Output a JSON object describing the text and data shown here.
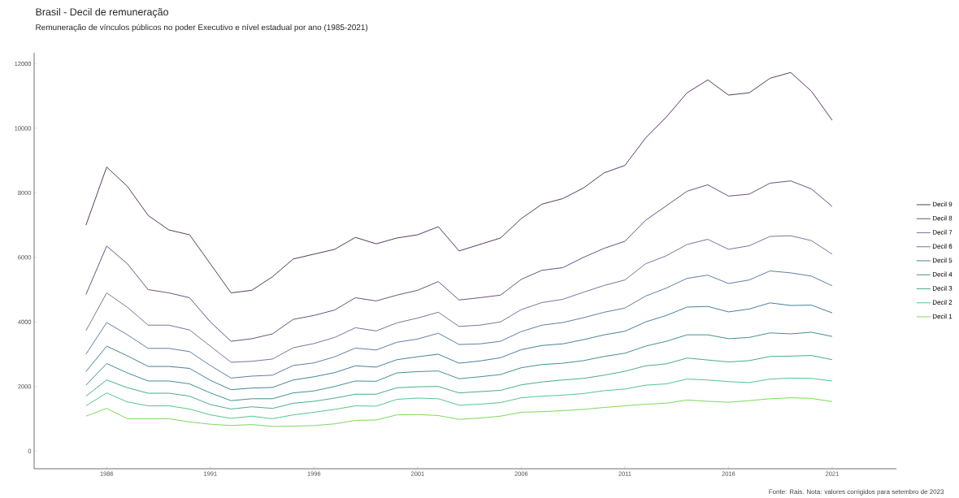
{
  "chart_data": {
    "type": "line",
    "title": "Brasil - Decil de remuneração",
    "subtitle": "Remuneração de vínculos públicos no poder Executivo e nível estadual por ano (1985-2021)",
    "annotations": [
      "Fonte: Rais. Nota: valores corrigidos para setembro de 2023"
    ],
    "x": [
      1985,
      1986,
      1987,
      1988,
      1989,
      1990,
      1991,
      1992,
      1993,
      1994,
      1995,
      1996,
      1997,
      1998,
      1999,
      2000,
      2001,
      2002,
      2003,
      2004,
      2005,
      2006,
      2007,
      2008,
      2009,
      2010,
      2011,
      2012,
      2013,
      2014,
      2015,
      2016,
      2017,
      2018,
      2019,
      2020,
      2021
    ],
    "xlim": [
      1982.5,
      2024.1
    ],
    "xticks": [
      1986,
      1991,
      1996,
      2001,
      2006,
      2011,
      2016,
      2021
    ],
    "ylim": [
      -550,
      12340
    ],
    "yticks": [
      0,
      2000,
      4000,
      6000,
      8000,
      10000,
      12000
    ],
    "legend": "right",
    "series": [
      {
        "name": "Decil 9",
        "color": "#44264c",
        "values": [
          7000,
          8800,
          8200,
          7300,
          6850,
          6700,
          5800,
          4900,
          4980,
          5400,
          5950,
          6100,
          6250,
          6620,
          6420,
          6600,
          6700,
          6950,
          6200,
          6400,
          6600,
          7200,
          7650,
          7820,
          8150,
          8620,
          8850,
          9700,
          10350,
          11100,
          11500,
          11030,
          11100,
          11550,
          11730,
          11150,
          10250
        ]
      },
      {
        "name": "Decil 8",
        "color": "#5a3f6b",
        "values": [
          4850,
          6350,
          5800,
          5000,
          4900,
          4750,
          4000,
          3400,
          3480,
          3630,
          4080,
          4200,
          4370,
          4750,
          4650,
          4830,
          4980,
          5250,
          4680,
          4750,
          4830,
          5320,
          5600,
          5680,
          6000,
          6280,
          6500,
          7150,
          7600,
          8050,
          8250,
          7900,
          7960,
          8300,
          8370,
          8120,
          7580
        ]
      },
      {
        "name": "Decil 7",
        "color": "#6b6391",
        "values": [
          3730,
          4900,
          4450,
          3900,
          3900,
          3750,
          3250,
          2750,
          2780,
          2850,
          3200,
          3330,
          3520,
          3820,
          3720,
          3970,
          4120,
          4300,
          3860,
          3900,
          4000,
          4380,
          4600,
          4700,
          4920,
          5130,
          5300,
          5800,
          6050,
          6400,
          6560,
          6250,
          6360,
          6650,
          6670,
          6520,
          6100
        ]
      },
      {
        "name": "Decil 6",
        "color": "#4f6f94",
        "values": [
          3000,
          3980,
          3600,
          3180,
          3180,
          3080,
          2650,
          2260,
          2320,
          2350,
          2650,
          2730,
          2920,
          3190,
          3130,
          3370,
          3470,
          3650,
          3300,
          3320,
          3400,
          3700,
          3900,
          3980,
          4130,
          4300,
          4430,
          4800,
          5050,
          5350,
          5450,
          5190,
          5300,
          5580,
          5520,
          5420,
          5120
        ]
      },
      {
        "name": "Decil 5",
        "color": "#33718f",
        "values": [
          2460,
          3250,
          2950,
          2620,
          2620,
          2560,
          2190,
          1900,
          1950,
          1970,
          2200,
          2300,
          2430,
          2640,
          2600,
          2830,
          2920,
          3000,
          2720,
          2790,
          2890,
          3140,
          3270,
          3320,
          3450,
          3600,
          3710,
          4000,
          4200,
          4460,
          4480,
          4310,
          4400,
          4590,
          4510,
          4520,
          4280
        ]
      },
      {
        "name": "Decil 4",
        "color": "#2a8480",
        "values": [
          2040,
          2710,
          2420,
          2170,
          2170,
          2080,
          1800,
          1560,
          1620,
          1620,
          1800,
          1860,
          2000,
          2170,
          2160,
          2420,
          2460,
          2480,
          2240,
          2300,
          2370,
          2580,
          2680,
          2720,
          2800,
          2930,
          3030,
          3250,
          3400,
          3600,
          3600,
          3480,
          3520,
          3660,
          3630,
          3680,
          3550
        ]
      },
      {
        "name": "Decil 3",
        "color": "#35a283",
        "values": [
          1700,
          2200,
          1960,
          1790,
          1790,
          1700,
          1440,
          1300,
          1370,
          1320,
          1480,
          1540,
          1640,
          1760,
          1760,
          1960,
          1990,
          2000,
          1800,
          1840,
          1880,
          2050,
          2140,
          2200,
          2250,
          2350,
          2470,
          2640,
          2700,
          2880,
          2820,
          2760,
          2800,
          2930,
          2940,
          2960,
          2830
        ]
      },
      {
        "name": "Decil 2",
        "color": "#3fbf7f",
        "values": [
          1400,
          1800,
          1520,
          1400,
          1400,
          1300,
          1120,
          1010,
          1080,
          1000,
          1120,
          1200,
          1290,
          1400,
          1390,
          1600,
          1640,
          1620,
          1420,
          1450,
          1500,
          1650,
          1700,
          1730,
          1780,
          1870,
          1920,
          2040,
          2080,
          2230,
          2200,
          2150,
          2120,
          2230,
          2260,
          2250,
          2170
        ]
      },
      {
        "name": "Decil 1",
        "color": "#6fd34a",
        "values": [
          1080,
          1320,
          1000,
          1000,
          1000,
          900,
          830,
          790,
          820,
          760,
          770,
          790,
          840,
          950,
          960,
          1120,
          1130,
          1100,
          980,
          1020,
          1080,
          1200,
          1220,
          1250,
          1290,
          1350,
          1400,
          1450,
          1480,
          1580,
          1540,
          1510,
          1560,
          1620,
          1650,
          1630,
          1530
        ]
      }
    ]
  }
}
